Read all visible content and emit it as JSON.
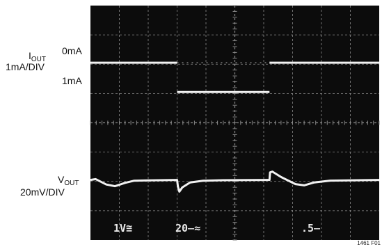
{
  "chart_data": {
    "type": "line",
    "grid": true,
    "grid_divisions": {
      "x": 10,
      "y": 8
    },
    "colors": {
      "screen": "#0c0c0c",
      "grid": "#8a8a8a",
      "trace": "#f2f2f2"
    },
    "iout": {
      "label_main": "I",
      "label_sub": "OUT",
      "scale": "1mA/DIV",
      "level_high": "0mA",
      "level_low": "1mA",
      "segments": [
        {
          "x": [
            0.0,
            3.0
          ],
          "y": 0
        },
        {
          "x": [
            3.0,
            6.2
          ],
          "y": 1
        },
        {
          "x": [
            6.2,
            10.0
          ],
          "y": 0
        }
      ]
    },
    "vout": {
      "label_main": "V",
      "label_sub": "OUT",
      "scale": "20mV/DIV",
      "points": [
        [
          0.0,
          0.0
        ],
        [
          0.18,
          0.1
        ],
        [
          0.55,
          -0.55
        ],
        [
          0.85,
          -0.75
        ],
        [
          1.2,
          -0.35
        ],
        [
          1.5,
          -0.1
        ],
        [
          2.0,
          -0.05
        ],
        [
          3.0,
          0.0
        ],
        [
          3.03,
          -0.8
        ],
        [
          3.08,
          -1.4
        ],
        [
          3.18,
          -0.9
        ],
        [
          3.45,
          -0.3
        ],
        [
          3.9,
          -0.1
        ],
        [
          4.6,
          -0.03
        ],
        [
          6.2,
          0.0
        ],
        [
          6.22,
          0.9
        ],
        [
          6.3,
          1.0
        ],
        [
          6.6,
          0.35
        ],
        [
          7.1,
          -0.5
        ],
        [
          7.4,
          -0.65
        ],
        [
          7.75,
          -0.3
        ],
        [
          8.3,
          -0.08
        ],
        [
          10.0,
          0.0
        ]
      ]
    },
    "scope_readout": [
      "1V≅",
      "20̶≈",
      ".5̶"
    ],
    "figure_id": "1461 F01"
  }
}
